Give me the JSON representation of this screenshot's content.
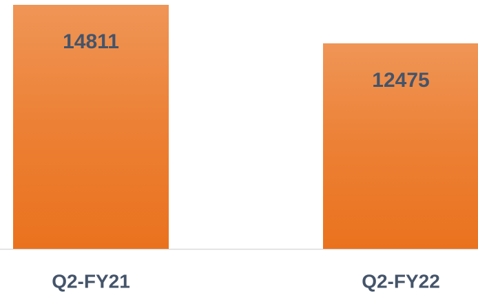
{
  "chart_data": {
    "type": "bar",
    "categories": [
      "Q2-FY21",
      "Q2-FY22"
    ],
    "values": [
      14811,
      12475
    ],
    "color": "#ea721e"
  }
}
